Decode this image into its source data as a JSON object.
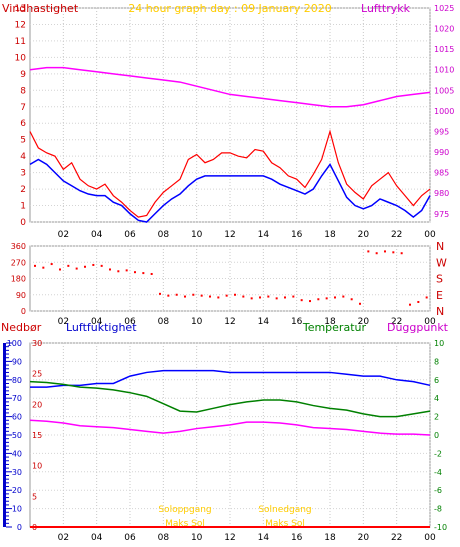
{
  "chart_data": [
    {
      "type": "line",
      "title": "24 hour graph day : 09 January 2020",
      "left_axis_label": "Vindhastighet",
      "right_axis_label": "Lufttrykk",
      "x_ticks": [
        "02",
        "04",
        "06",
        "08",
        "10",
        "12",
        "14",
        "16",
        "18",
        "20",
        "22",
        "00"
      ],
      "y_left": {
        "ticks": [
          0,
          1,
          2,
          3,
          4,
          5,
          6,
          7,
          8,
          9,
          10,
          11,
          12,
          13
        ],
        "range": [
          0,
          13
        ]
      },
      "y_right": {
        "ticks": [
          975,
          980,
          985,
          990,
          995,
          1000,
          1005,
          1010,
          1015,
          1020,
          1025
        ],
        "range": [
          973,
          1025
        ]
      },
      "series": [
        {
          "key": "gust",
          "color": "#ff0000",
          "axis": "left",
          "x": [
            0,
            0.5,
            1,
            1.5,
            2,
            2.5,
            3,
            3.5,
            4,
            4.5,
            5,
            5.5,
            6,
            6.5,
            7,
            7.5,
            8,
            8.5,
            9,
            9.5,
            10,
            10.5,
            11,
            11.5,
            12,
            12.5,
            13,
            13.5,
            14,
            14.5,
            15,
            15.5,
            16,
            16.5,
            17,
            17.5,
            18,
            18.5,
            19,
            19.5,
            20,
            20.5,
            21,
            21.5,
            22,
            22.5,
            23,
            23.5,
            24
          ],
          "y": [
            5.5,
            4.5,
            4.2,
            4,
            3.2,
            3.6,
            2.6,
            2.2,
            2,
            2.3,
            1.6,
            1.2,
            0.7,
            0.3,
            0.4,
            1.2,
            1.8,
            2.2,
            2.6,
            3.8,
            4.1,
            3.6,
            3.8,
            4.2,
            4.2,
            4,
            3.9,
            4.4,
            4.3,
            3.6,
            3.3,
            2.8,
            2.6,
            2.1,
            2.9,
            3.8,
            5.5,
            3.6,
            2.3,
            1.8,
            1.4,
            2.2,
            2.6,
            3,
            2.2,
            1.6,
            1,
            1.6,
            2
          ]
        },
        {
          "key": "average_wind",
          "color": "#0000ff",
          "axis": "left",
          "x": [
            0,
            0.5,
            1,
            1.5,
            2,
            2.5,
            3,
            3.5,
            4,
            4.5,
            5,
            5.5,
            6,
            6.5,
            7,
            7.5,
            8,
            8.5,
            9,
            9.5,
            10,
            10.5,
            11,
            11.5,
            12,
            12.5,
            13,
            13.5,
            14,
            14.5,
            15,
            15.5,
            16,
            16.5,
            17,
            17.5,
            18,
            18.5,
            19,
            19.5,
            20,
            20.5,
            21,
            21.5,
            22,
            22.5,
            23,
            23.5,
            24
          ],
          "y": [
            3.5,
            3.8,
            3.5,
            3,
            2.5,
            2.2,
            1.9,
            1.7,
            1.6,
            1.6,
            1.2,
            1,
            0.5,
            0.1,
            0,
            0.5,
            1,
            1.4,
            1.7,
            2.2,
            2.6,
            2.8,
            2.8,
            2.8,
            2.8,
            2.8,
            2.8,
            2.8,
            2.8,
            2.6,
            2.3,
            2.1,
            1.9,
            1.7,
            2,
            2.8,
            3.5,
            2.5,
            1.5,
            1,
            0.8,
            1,
            1.4,
            1.2,
            1,
            0.7,
            0.3,
            0.7,
            1.6
          ]
        },
        {
          "key": "pressure",
          "color": "#ff00ff",
          "axis": "right",
          "x": [
            0,
            1,
            2,
            3,
            4,
            5,
            6,
            7,
            8,
            9,
            10,
            11,
            12,
            13,
            14,
            15,
            16,
            17,
            18,
            19,
            20,
            21,
            22,
            23,
            24
          ],
          "y": [
            1010,
            1010.5,
            1010.5,
            1010,
            1009.5,
            1009,
            1008.5,
            1008,
            1007.5,
            1007,
            1006,
            1005,
            1004,
            1003.5,
            1003,
            1002.5,
            1002,
            1001.5,
            1001,
            1001,
            1001.5,
            1002.5,
            1003.5,
            1004,
            1004.5
          ]
        }
      ]
    },
    {
      "type": "scatter",
      "y_ticks": [
        0,
        90,
        180,
        270,
        360
      ],
      "y_range": [
        0,
        360
      ],
      "compass_labels": [
        "N",
        "W",
        "S",
        "E",
        "N"
      ],
      "x_ticks": [
        "02",
        "04",
        "06",
        "08",
        "10",
        "12",
        "14",
        "16",
        "18",
        "20",
        "22",
        "00"
      ],
      "color": "#ff0000",
      "series": [
        {
          "key": "wind_direction",
          "x": [
            0.3,
            0.8,
            1.3,
            1.8,
            2.3,
            2.8,
            3.3,
            3.8,
            4.3,
            4.8,
            5.3,
            5.8,
            6.3,
            6.8,
            7.3,
            7.8,
            8.3,
            8.8,
            9.3,
            9.8,
            10.3,
            10.8,
            11.3,
            11.8,
            12.3,
            12.8,
            13.3,
            13.8,
            14.3,
            14.8,
            15.3,
            15.8,
            16.3,
            16.8,
            17.3,
            17.8,
            18.3,
            18.8,
            19.3,
            19.8,
            20.3,
            20.8,
            21.3,
            21.8,
            22.3,
            22.8,
            23.3,
            23.8
          ],
          "y": [
            250,
            240,
            260,
            230,
            250,
            235,
            245,
            255,
            250,
            230,
            220,
            225,
            215,
            210,
            205,
            95,
            85,
            90,
            80,
            90,
            85,
            80,
            75,
            85,
            90,
            80,
            70,
            75,
            80,
            70,
            75,
            80,
            60,
            55,
            65,
            70,
            75,
            80,
            65,
            40,
            330,
            320,
            330,
            325,
            320,
            35,
            50,
            75
          ]
        }
      ]
    },
    {
      "type": "line",
      "left_axis_label": "Nedbør",
      "left2_axis_label": "Luftfuktighet",
      "right_axis_label": "Temperatur",
      "right2_axis_label": "Duggpunkt",
      "y_left": {
        "ticks": [
          0,
          10,
          20,
          30,
          40,
          50,
          60,
          70,
          80,
          90,
          100
        ],
        "range": [
          0,
          100
        ]
      },
      "y_left2": {
        "ticks": [
          0,
          5,
          10,
          15,
          20,
          25,
          30
        ],
        "range": [
          0,
          30
        ]
      },
      "y_right": {
        "ticks": [
          -10,
          -8,
          -6,
          -4,
          -2,
          0,
          2,
          4,
          6,
          8,
          10
        ],
        "range": [
          -10,
          10
        ]
      },
      "x_ticks": [
        "02",
        "04",
        "06",
        "08",
        "10",
        "12",
        "14",
        "16",
        "18",
        "20",
        "22",
        "00"
      ],
      "annotations": [
        {
          "text": "Soloppgang",
          "x": 9.3
        },
        {
          "text": "Solnedgang",
          "x": 15.3
        },
        {
          "text": "Maks Sol",
          "x": 9.3
        },
        {
          "text": "Maks Sol",
          "x": 15.3
        }
      ],
      "series": [
        {
          "key": "humidity",
          "color": "#0000ff",
          "axis": "left",
          "x": [
            0,
            1,
            2,
            3,
            4,
            5,
            6,
            7,
            8,
            9,
            10,
            11,
            12,
            13,
            14,
            15,
            16,
            17,
            18,
            19,
            20,
            21,
            22,
            23,
            24
          ],
          "y": [
            76,
            76,
            77,
            77,
            78,
            78,
            82,
            84,
            85,
            85,
            85,
            85,
            84,
            84,
            84,
            84,
            84,
            84,
            84,
            83,
            82,
            82,
            80,
            79,
            77
          ]
        },
        {
          "key": "temperature",
          "color": "#008000",
          "axis": "right",
          "x": [
            0,
            1,
            2,
            3,
            4,
            5,
            6,
            7,
            8,
            9,
            10,
            11,
            12,
            13,
            14,
            15,
            16,
            17,
            18,
            19,
            20,
            21,
            22,
            23,
            24
          ],
          "y": [
            5.8,
            5.7,
            5.5,
            5.2,
            5.1,
            4.9,
            4.6,
            4.2,
            3.4,
            2.6,
            2.5,
            2.9,
            3.3,
            3.6,
            3.8,
            3.8,
            3.6,
            3.2,
            2.9,
            2.7,
            2.3,
            2,
            2,
            2.3,
            2.6
          ]
        },
        {
          "key": "dew_point",
          "color": "#ff00ff",
          "axis": "right",
          "x": [
            0,
            1,
            2,
            3,
            4,
            5,
            6,
            7,
            8,
            9,
            10,
            11,
            12,
            13,
            14,
            15,
            16,
            17,
            18,
            19,
            20,
            21,
            22,
            23,
            24
          ],
          "y": [
            1.6,
            1.5,
            1.3,
            1,
            0.9,
            0.8,
            0.6,
            0.4,
            0.2,
            0.4,
            0.7,
            0.9,
            1.1,
            1.4,
            1.4,
            1.3,
            1.1,
            0.8,
            0.7,
            0.6,
            0.4,
            0.2,
            0.1,
            0.1,
            0
          ]
        },
        {
          "key": "rain",
          "color": "#ff0000",
          "axis": "left",
          "x": [
            0,
            24
          ],
          "y": [
            0,
            0
          ]
        }
      ]
    }
  ]
}
